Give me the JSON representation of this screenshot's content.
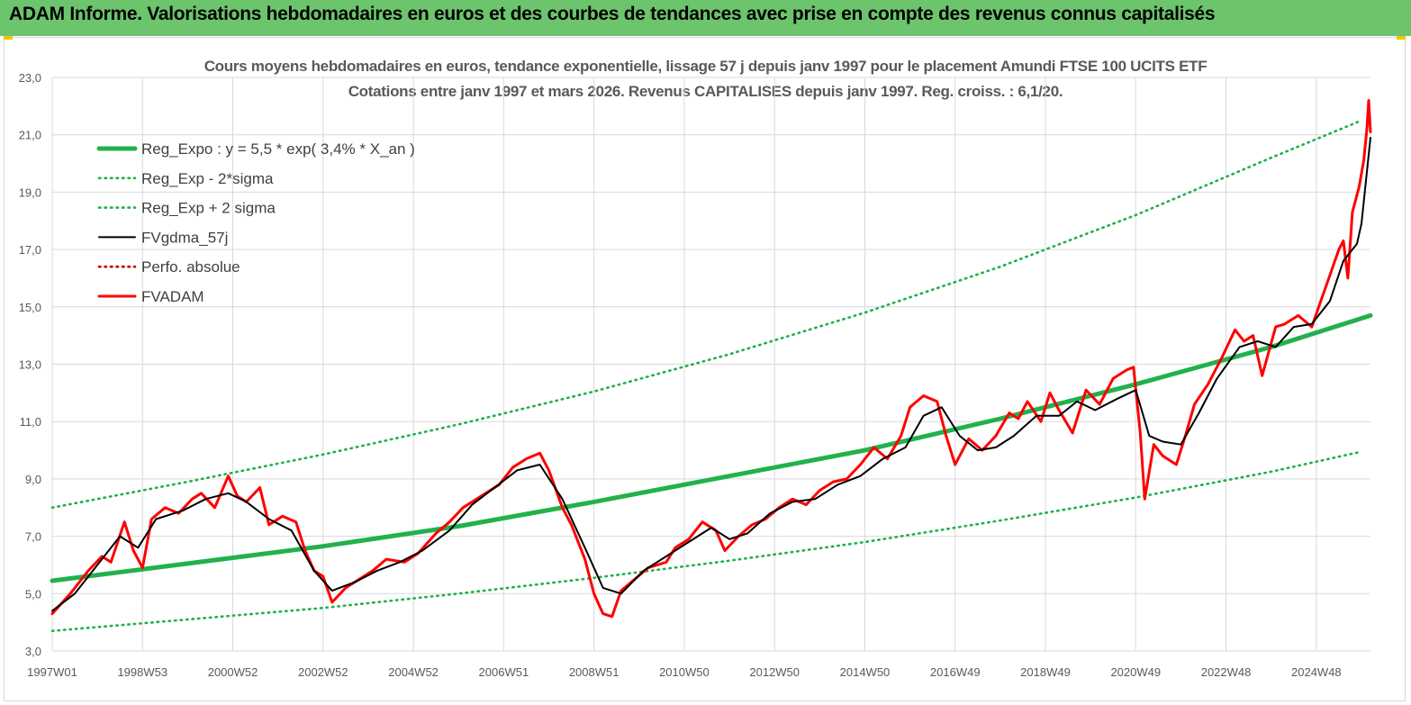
{
  "header": {
    "title": "ADAM Informe. Valorisations hebdomadaires en euros et des courbes de tendances avec prise en compte des revenus connus capitalisés"
  },
  "colors": {
    "banner": "#6cc46c",
    "trend": "#22b14c",
    "smoothed": "#000000",
    "price": "#ff0000",
    "grid": "#d9d9d9",
    "text": "#595959"
  },
  "chart_data": {
    "type": "line",
    "title": "Cours moyens hebdomadaires en euros, tendance exponentielle, lissage 57 j depuis janv 1997  pour le placement Amundi FTSE 100 UCITS ETF",
    "subtitle": "Cotations entre janv 1997 et mars 2026. Revenus  CAPITALISES  depuis janv 1997. Reg. croiss. : 6,1/20.",
    "xlabel": "",
    "ylabel": "",
    "ylim": [
      3.0,
      23.0
    ],
    "xlim": [
      1997.0,
      2026.2
    ],
    "y_ticks": [
      "3,0",
      "5,0",
      "7,0",
      "9,0",
      "11,0",
      "13,0",
      "15,0",
      "17,0",
      "19,0",
      "21,0",
      "23,0"
    ],
    "x_ticks": [
      {
        "label": "1997W01",
        "x": 1997.0
      },
      {
        "label": "1998W53",
        "x": 1999.0
      },
      {
        "label": "2000W52",
        "x": 2001.0
      },
      {
        "label": "2002W52",
        "x": 2003.0
      },
      {
        "label": "2004W52",
        "x": 2005.0
      },
      {
        "label": "2006W51",
        "x": 2007.0
      },
      {
        "label": "2008W51",
        "x": 2009.0
      },
      {
        "label": "2010W50",
        "x": 2011.0
      },
      {
        "label": "2012W50",
        "x": 2013.0
      },
      {
        "label": "2014W50",
        "x": 2015.0
      },
      {
        "label": "2016W49",
        "x": 2017.0
      },
      {
        "label": "2018W49",
        "x": 2019.0
      },
      {
        "label": "2020W49",
        "x": 2021.0
      },
      {
        "label": "2022W48",
        "x": 2023.0
      },
      {
        "label": "2024W48",
        "x": 2025.0
      }
    ],
    "grid": true,
    "legend_position": "top-left",
    "series": [
      {
        "name": "Reg_Expo : y = 5,5 * exp( 3,4% *  X_an )",
        "style": "solid-thick",
        "color": "#22b14c",
        "points": [
          [
            1997.0,
            5.45
          ],
          [
            2000.0,
            6.05
          ],
          [
            2003.0,
            6.65
          ],
          [
            2006.0,
            7.35
          ],
          [
            2009.0,
            8.2
          ],
          [
            2012.0,
            9.1
          ],
          [
            2015.0,
            10.0
          ],
          [
            2018.0,
            11.1
          ],
          [
            2021.0,
            12.3
          ],
          [
            2024.0,
            13.6
          ],
          [
            2026.2,
            14.7
          ]
        ]
      },
      {
        "name": "Reg_Exp - 2*sigma",
        "style": "dotted",
        "color": "#22b14c",
        "points": [
          [
            1997.0,
            3.7
          ],
          [
            2000.0,
            4.1
          ],
          [
            2003.0,
            4.5
          ],
          [
            2006.0,
            5.0
          ],
          [
            2009.0,
            5.55
          ],
          [
            2012.0,
            6.15
          ],
          [
            2015.0,
            6.8
          ],
          [
            2018.0,
            7.55
          ],
          [
            2021.0,
            8.35
          ],
          [
            2024.0,
            9.25
          ],
          [
            2026.0,
            9.95
          ]
        ]
      },
      {
        "name": "Reg_Exp + 2 sigma",
        "style": "dotted",
        "color": "#22b14c",
        "points": [
          [
            1997.0,
            8.0
          ],
          [
            2000.0,
            8.9
          ],
          [
            2003.0,
            9.85
          ],
          [
            2006.0,
            10.9
          ],
          [
            2009.0,
            12.05
          ],
          [
            2012.0,
            13.35
          ],
          [
            2015.0,
            14.8
          ],
          [
            2018.0,
            16.4
          ],
          [
            2021.0,
            18.2
          ],
          [
            2024.0,
            20.2
          ],
          [
            2026.0,
            21.5
          ]
        ]
      },
      {
        "name": "FVgdma_57j",
        "style": "solid",
        "color": "#000000",
        "points": [
          [
            1997.0,
            4.4
          ],
          [
            1997.5,
            5.0
          ],
          [
            1998.0,
            6.0
          ],
          [
            1998.5,
            7.0
          ],
          [
            1998.9,
            6.6
          ],
          [
            1999.3,
            7.6
          ],
          [
            1999.9,
            7.9
          ],
          [
            2000.4,
            8.3
          ],
          [
            2000.9,
            8.5
          ],
          [
            2001.3,
            8.2
          ],
          [
            2001.8,
            7.6
          ],
          [
            2002.3,
            7.2
          ],
          [
            2002.8,
            5.8
          ],
          [
            2003.2,
            5.1
          ],
          [
            2003.7,
            5.4
          ],
          [
            2004.2,
            5.8
          ],
          [
            2004.7,
            6.1
          ],
          [
            2005.2,
            6.5
          ],
          [
            2005.8,
            7.2
          ],
          [
            2006.3,
            8.1
          ],
          [
            2006.8,
            8.7
          ],
          [
            2007.3,
            9.3
          ],
          [
            2007.8,
            9.5
          ],
          [
            2008.3,
            8.3
          ],
          [
            2008.8,
            6.6
          ],
          [
            2009.2,
            5.2
          ],
          [
            2009.6,
            5.0
          ],
          [
            2010.1,
            5.8
          ],
          [
            2010.6,
            6.3
          ],
          [
            2011.1,
            6.8
          ],
          [
            2011.6,
            7.3
          ],
          [
            2012.0,
            6.9
          ],
          [
            2012.4,
            7.1
          ],
          [
            2012.9,
            7.8
          ],
          [
            2013.4,
            8.2
          ],
          [
            2013.9,
            8.3
          ],
          [
            2014.4,
            8.8
          ],
          [
            2014.9,
            9.1
          ],
          [
            2015.4,
            9.7
          ],
          [
            2015.9,
            10.1
          ],
          [
            2016.3,
            11.2
          ],
          [
            2016.7,
            11.5
          ],
          [
            2017.1,
            10.5
          ],
          [
            2017.5,
            10.0
          ],
          [
            2017.9,
            10.1
          ],
          [
            2018.3,
            10.5
          ],
          [
            2018.8,
            11.2
          ],
          [
            2019.3,
            11.2
          ],
          [
            2019.7,
            11.7
          ],
          [
            2020.1,
            11.4
          ],
          [
            2020.6,
            11.8
          ],
          [
            2021.0,
            12.1
          ],
          [
            2021.3,
            10.5
          ],
          [
            2021.6,
            10.3
          ],
          [
            2022.0,
            10.2
          ],
          [
            2022.4,
            11.3
          ],
          [
            2022.8,
            12.5
          ],
          [
            2023.3,
            13.6
          ],
          [
            2023.7,
            13.8
          ],
          [
            2024.1,
            13.6
          ],
          [
            2024.5,
            14.3
          ],
          [
            2024.9,
            14.4
          ],
          [
            2025.3,
            15.2
          ],
          [
            2025.6,
            16.6
          ],
          [
            2025.9,
            17.2
          ],
          [
            2026.0,
            17.9
          ],
          [
            2026.2,
            20.9
          ]
        ]
      },
      {
        "name": "Perfo. absolue",
        "style": "dotted",
        "color": "#c00000",
        "points": []
      },
      {
        "name": "FVADAM",
        "style": "solid-thick",
        "color": "#ff0000",
        "points": [
          [
            1997.0,
            4.3
          ],
          [
            1997.4,
            5.0
          ],
          [
            1997.8,
            5.8
          ],
          [
            1998.1,
            6.3
          ],
          [
            1998.3,
            6.1
          ],
          [
            1998.6,
            7.5
          ],
          [
            1998.8,
            6.5
          ],
          [
            1999.0,
            5.9
          ],
          [
            1999.2,
            7.6
          ],
          [
            1999.5,
            8.0
          ],
          [
            1999.8,
            7.8
          ],
          [
            2000.1,
            8.3
          ],
          [
            2000.3,
            8.5
          ],
          [
            2000.6,
            8.0
          ],
          [
            2000.9,
            9.1
          ],
          [
            2001.1,
            8.4
          ],
          [
            2001.3,
            8.2
          ],
          [
            2001.6,
            8.7
          ],
          [
            2001.8,
            7.4
          ],
          [
            2002.1,
            7.7
          ],
          [
            2002.4,
            7.5
          ],
          [
            2002.6,
            6.5
          ],
          [
            2002.8,
            5.8
          ],
          [
            2003.0,
            5.6
          ],
          [
            2003.2,
            4.7
          ],
          [
            2003.5,
            5.2
          ],
          [
            2003.8,
            5.5
          ],
          [
            2004.1,
            5.8
          ],
          [
            2004.4,
            6.2
          ],
          [
            2004.8,
            6.1
          ],
          [
            2005.1,
            6.4
          ],
          [
            2005.5,
            7.1
          ],
          [
            2005.8,
            7.5
          ],
          [
            2006.1,
            8.0
          ],
          [
            2006.5,
            8.4
          ],
          [
            2006.9,
            8.8
          ],
          [
            2007.2,
            9.4
          ],
          [
            2007.5,
            9.7
          ],
          [
            2007.8,
            9.9
          ],
          [
            2008.0,
            9.3
          ],
          [
            2008.3,
            8.0
          ],
          [
            2008.5,
            7.4
          ],
          [
            2008.8,
            6.2
          ],
          [
            2009.0,
            5.0
          ],
          [
            2009.2,
            4.3
          ],
          [
            2009.4,
            4.2
          ],
          [
            2009.6,
            5.1
          ],
          [
            2009.9,
            5.5
          ],
          [
            2010.2,
            5.9
          ],
          [
            2010.6,
            6.1
          ],
          [
            2010.8,
            6.6
          ],
          [
            2011.1,
            6.9
          ],
          [
            2011.4,
            7.5
          ],
          [
            2011.7,
            7.2
          ],
          [
            2011.9,
            6.5
          ],
          [
            2012.2,
            7.0
          ],
          [
            2012.5,
            7.4
          ],
          [
            2012.8,
            7.6
          ],
          [
            2013.1,
            8.0
          ],
          [
            2013.4,
            8.3
          ],
          [
            2013.7,
            8.1
          ],
          [
            2014.0,
            8.6
          ],
          [
            2014.3,
            8.9
          ],
          [
            2014.6,
            9.0
          ],
          [
            2014.9,
            9.5
          ],
          [
            2015.2,
            10.1
          ],
          [
            2015.5,
            9.7
          ],
          [
            2015.8,
            10.5
          ],
          [
            2016.0,
            11.5
          ],
          [
            2016.3,
            11.9
          ],
          [
            2016.6,
            11.7
          ],
          [
            2016.8,
            10.5
          ],
          [
            2017.0,
            9.5
          ],
          [
            2017.3,
            10.4
          ],
          [
            2017.6,
            10.0
          ],
          [
            2017.9,
            10.5
          ],
          [
            2018.2,
            11.3
          ],
          [
            2018.4,
            11.1
          ],
          [
            2018.6,
            11.7
          ],
          [
            2018.9,
            11.0
          ],
          [
            2019.1,
            12.0
          ],
          [
            2019.3,
            11.4
          ],
          [
            2019.6,
            10.6
          ],
          [
            2019.9,
            12.1
          ],
          [
            2020.2,
            11.6
          ],
          [
            2020.5,
            12.5
          ],
          [
            2020.8,
            12.8
          ],
          [
            2020.95,
            12.9
          ],
          [
            2021.1,
            10.6
          ],
          [
            2021.2,
            8.3
          ],
          [
            2021.4,
            10.2
          ],
          [
            2021.6,
            9.8
          ],
          [
            2021.9,
            9.5
          ],
          [
            2022.1,
            10.5
          ],
          [
            2022.3,
            11.6
          ],
          [
            2022.6,
            12.3
          ],
          [
            2022.9,
            13.2
          ],
          [
            2023.2,
            14.2
          ],
          [
            2023.4,
            13.8
          ],
          [
            2023.6,
            14.0
          ],
          [
            2023.8,
            12.6
          ],
          [
            2024.1,
            14.3
          ],
          [
            2024.3,
            14.4
          ],
          [
            2024.6,
            14.7
          ],
          [
            2024.9,
            14.3
          ],
          [
            2025.1,
            15.2
          ],
          [
            2025.3,
            16.1
          ],
          [
            2025.5,
            17.0
          ],
          [
            2025.6,
            17.3
          ],
          [
            2025.7,
            16.0
          ],
          [
            2025.8,
            18.3
          ],
          [
            2025.95,
            19.2
          ],
          [
            2026.05,
            20.1
          ],
          [
            2026.12,
            21.2
          ],
          [
            2026.16,
            22.2
          ],
          [
            2026.2,
            21.1
          ]
        ]
      }
    ]
  }
}
